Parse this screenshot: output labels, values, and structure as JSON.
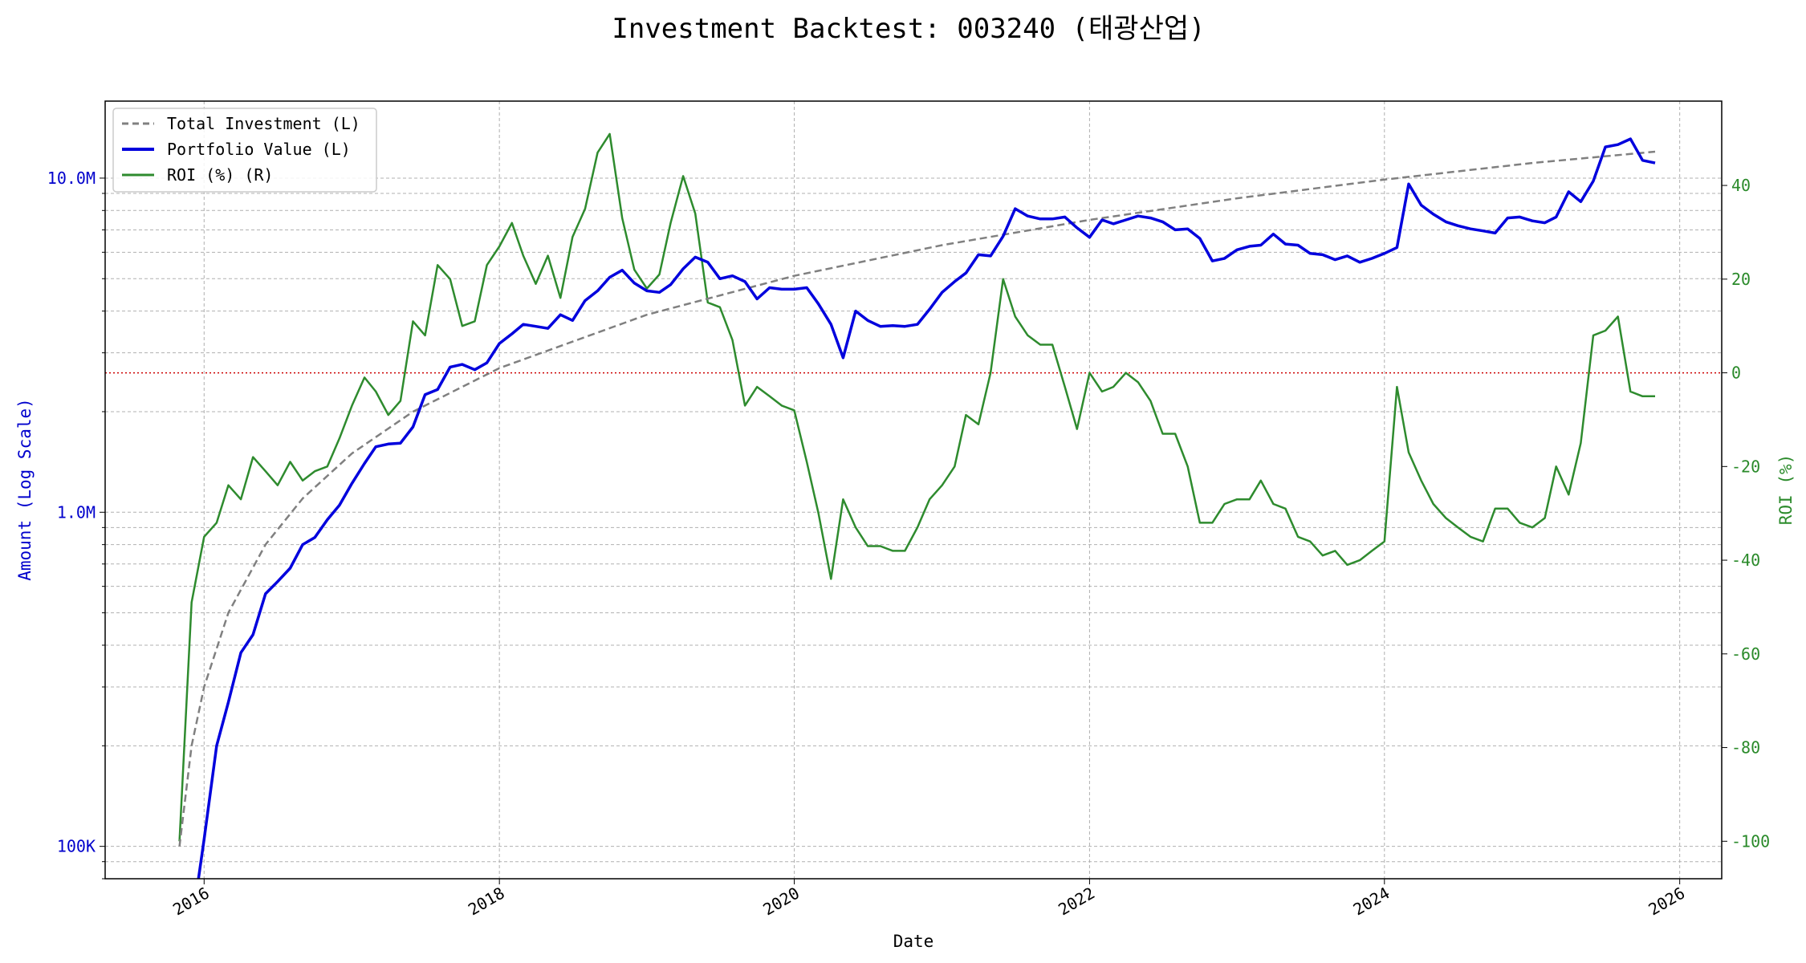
{
  "chart_data": {
    "type": "line",
    "title": "Investment Backtest: 003240 (태광산업)",
    "xlabel": "Date",
    "ylabel_left": "Amount (Log Scale)",
    "ylabel_right": "ROI (%)",
    "y_left_scale": "log",
    "y_left_ticks": [
      {
        "value": 100000,
        "label": "100K"
      },
      {
        "value": 1000000,
        "label": "1.0M"
      },
      {
        "value": 10000000,
        "label": "10.0M"
      }
    ],
    "y_right_ticks": [
      -100,
      -80,
      -60,
      -40,
      -20,
      0,
      20,
      40
    ],
    "x_ticks": [
      "2016",
      "2018",
      "2020",
      "2022",
      "2024",
      "2026"
    ],
    "x_range": [
      "2015-05-01",
      "2026-04-15"
    ],
    "y_left_range": [
      80000,
      17000000
    ],
    "y_right_range": [
      -108,
      58
    ],
    "grid": true,
    "legend_position": "top-left",
    "legend": [
      "Total Investment (L)",
      "Portfolio Value (L)",
      "ROI (%) (R)"
    ],
    "reference_line": {
      "axis": "right",
      "value": 0,
      "color": "#cc0000",
      "style": "dotted"
    },
    "colors": {
      "total_investment": "#808080",
      "portfolio_value": "#0000dd",
      "roi": "#2e8b2e",
      "left_axis": "#0000cc",
      "right_axis": "#2a8a2a"
    },
    "series": [
      {
        "name": "Total Investment (L)",
        "axis": "left",
        "style": "dashed",
        "x": [
          "2015-11-01",
          "2015-12-01",
          "2016-01-01",
          "2016-03-01",
          "2016-06-01",
          "2016-09-01",
          "2017-01-01",
          "2017-06-01",
          "2018-01-01",
          "2019-01-01",
          "2020-01-01",
          "2021-01-01",
          "2022-01-01",
          "2023-01-01",
          "2024-01-01",
          "2025-01-01",
          "2025-11-01"
        ],
        "values": [
          100000,
          200000,
          300000,
          500000,
          800000,
          1100000,
          1500000,
          2000000,
          2700000,
          3900000,
          5100000,
          6300000,
          7500000,
          8700000,
          9900000,
          11100000,
          12000000
        ]
      },
      {
        "name": "Portfolio Value (L)",
        "axis": "left",
        "style": "solid",
        "x": [
          "2015-12-01",
          "2016-01-01",
          "2016-02-01",
          "2016-03-01",
          "2016-04-01",
          "2016-05-01",
          "2016-06-01",
          "2016-07-01",
          "2016-08-01",
          "2016-09-01",
          "2016-10-01",
          "2016-11-01",
          "2016-12-01",
          "2017-01-01",
          "2017-02-01",
          "2017-03-01",
          "2017-04-01",
          "2017-05-01",
          "2017-06-01",
          "2017-07-01",
          "2017-08-01",
          "2017-09-01",
          "2017-10-01",
          "2017-11-01",
          "2017-12-01",
          "2018-01-01",
          "2018-02-01",
          "2018-03-01",
          "2018-04-01",
          "2018-05-01",
          "2018-06-01",
          "2018-07-01",
          "2018-08-01",
          "2018-09-01",
          "2018-10-01",
          "2018-11-01",
          "2018-12-01",
          "2019-01-01",
          "2019-02-01",
          "2019-03-01",
          "2019-04-01",
          "2019-05-01",
          "2019-06-01",
          "2019-07-01",
          "2019-08-01",
          "2019-09-01",
          "2019-10-01",
          "2019-11-01",
          "2019-12-01",
          "2020-01-01",
          "2020-02-01",
          "2020-03-01",
          "2020-04-01",
          "2020-05-01",
          "2020-06-01",
          "2020-07-01",
          "2020-08-01",
          "2020-09-01",
          "2020-10-01",
          "2020-11-01",
          "2020-12-01",
          "2021-01-01",
          "2021-02-01",
          "2021-03-01",
          "2021-04-01",
          "2021-05-01",
          "2021-06-01",
          "2021-07-01",
          "2021-08-01",
          "2021-09-01",
          "2021-10-01",
          "2021-11-01",
          "2021-12-01",
          "2022-01-01",
          "2022-02-01",
          "2022-03-01",
          "2022-04-01",
          "2022-05-01",
          "2022-06-01",
          "2022-07-01",
          "2022-08-01",
          "2022-09-01",
          "2022-10-01",
          "2022-11-01",
          "2022-12-01",
          "2023-01-01",
          "2023-02-01",
          "2023-03-01",
          "2023-04-01",
          "2023-05-01",
          "2023-06-01",
          "2023-07-01",
          "2023-08-01",
          "2023-09-01",
          "2023-10-01",
          "2023-11-01",
          "2023-12-01",
          "2024-01-01",
          "2024-02-01",
          "2024-03-01",
          "2024-04-01",
          "2024-05-01",
          "2024-06-01",
          "2024-07-01",
          "2024-08-01",
          "2024-09-01",
          "2024-10-01",
          "2024-11-01",
          "2024-12-01",
          "2025-01-01",
          "2025-02-01",
          "2025-03-01",
          "2025-04-01",
          "2025-05-01",
          "2025-06-01",
          "2025-07-01",
          "2025-08-01",
          "2025-09-01",
          "2025-10-01",
          "2025-11-01"
        ],
        "values": [
          70000,
          105000,
          200000,
          270000,
          380000,
          430000,
          570000,
          620000,
          680000,
          800000,
          840000,
          950000,
          1050000,
          1220000,
          1400000,
          1570000,
          1600000,
          1610000,
          1800000,
          2250000,
          2330000,
          2720000,
          2770000,
          2670000,
          2800000,
          3200000,
          3420000,
          3650000,
          3600000,
          3550000,
          3900000,
          3750000,
          4300000,
          4600000,
          5050000,
          5300000,
          4850000,
          4600000,
          4550000,
          4800000,
          5350000,
          5800000,
          5600000,
          5000000,
          5100000,
          4900000,
          4350000,
          4700000,
          4650000,
          4650000,
          4700000,
          4200000,
          3650000,
          2900000,
          4000000,
          3750000,
          3600000,
          3620000,
          3600000,
          3650000,
          4050000,
          4550000,
          4900000,
          5200000,
          5900000,
          5850000,
          6700000,
          8100000,
          7700000,
          7550000,
          7550000,
          7650000,
          7100000,
          6650000,
          7500000,
          7300000,
          7500000,
          7700000,
          7600000,
          7400000,
          7000000,
          7050000,
          6600000,
          5650000,
          5750000,
          6100000,
          6250000,
          6300000,
          6800000,
          6350000,
          6300000,
          5950000,
          5900000,
          5700000,
          5850000,
          5600000,
          5750000,
          5950000,
          6200000,
          9600000,
          8300000,
          7800000,
          7400000,
          7200000,
          7050000,
          6950000,
          6850000,
          7600000,
          7650000,
          7450000,
          7350000,
          7650000,
          9100000,
          8500000,
          9800000,
          12400000,
          12600000,
          13100000,
          11300000,
          11100000
        ],
        "markers": false
      },
      {
        "name": "ROI (%) (R)",
        "axis": "right",
        "style": "solid",
        "x": [
          "2015-11-01",
          "2015-12-01",
          "2016-01-01",
          "2016-02-01",
          "2016-03-01",
          "2016-04-01",
          "2016-05-01",
          "2016-06-01",
          "2016-07-01",
          "2016-08-01",
          "2016-09-01",
          "2016-10-01",
          "2016-11-01",
          "2016-12-01",
          "2017-01-01",
          "2017-02-01",
          "2017-03-01",
          "2017-04-01",
          "2017-05-01",
          "2017-06-01",
          "2017-07-01",
          "2017-08-01",
          "2017-09-01",
          "2017-10-01",
          "2017-11-01",
          "2017-12-01",
          "2018-01-01",
          "2018-02-01",
          "2018-03-01",
          "2018-04-01",
          "2018-05-01",
          "2018-06-01",
          "2018-07-01",
          "2018-08-01",
          "2018-09-01",
          "2018-10-01",
          "2018-11-01",
          "2018-12-01",
          "2019-01-01",
          "2019-02-01",
          "2019-03-01",
          "2019-04-01",
          "2019-05-01",
          "2019-06-01",
          "2019-07-01",
          "2019-08-01",
          "2019-09-01",
          "2019-10-01",
          "2019-11-01",
          "2019-12-01",
          "2020-01-01",
          "2020-02-01",
          "2020-03-01",
          "2020-04-01",
          "2020-05-01",
          "2020-06-01",
          "2020-07-01",
          "2020-08-01",
          "2020-09-01",
          "2020-10-01",
          "2020-11-01",
          "2020-12-01",
          "2021-01-01",
          "2021-02-01",
          "2021-03-01",
          "2021-04-01",
          "2021-05-01",
          "2021-06-01",
          "2021-07-01",
          "2021-08-01",
          "2021-09-01",
          "2021-10-01",
          "2021-11-01",
          "2021-12-01",
          "2022-01-01",
          "2022-02-01",
          "2022-03-01",
          "2022-04-01",
          "2022-05-01",
          "2022-06-01",
          "2022-07-01",
          "2022-08-01",
          "2022-09-01",
          "2022-10-01",
          "2022-11-01",
          "2022-12-01",
          "2023-01-01",
          "2023-02-01",
          "2023-03-01",
          "2023-04-01",
          "2023-05-01",
          "2023-06-01",
          "2023-07-01",
          "2023-08-01",
          "2023-09-01",
          "2023-10-01",
          "2023-11-01",
          "2023-12-01",
          "2024-01-01",
          "2024-02-01",
          "2024-03-01",
          "2024-04-01",
          "2024-05-01",
          "2024-06-01",
          "2024-07-01",
          "2024-08-01",
          "2024-09-01",
          "2024-10-01",
          "2024-11-01",
          "2024-12-01",
          "2025-01-01",
          "2025-02-01",
          "2025-03-01",
          "2025-04-01",
          "2025-05-01",
          "2025-06-01",
          "2025-07-01",
          "2025-08-01",
          "2025-09-01",
          "2025-10-01",
          "2025-11-01"
        ],
        "values": [
          -100,
          -49,
          -35,
          -32,
          -24,
          -27,
          -18,
          -21,
          -24,
          -19,
          -23,
          -21,
          -20,
          -14,
          -7,
          -1,
          -4,
          -9,
          -6,
          11,
          8,
          23,
          20,
          10,
          11,
          23,
          27,
          32,
          25,
          19,
          25,
          16,
          29,
          35,
          47,
          51,
          33,
          22,
          18,
          21,
          32,
          42,
          34,
          15,
          14,
          7,
          -7,
          -3,
          -5,
          -7,
          -8,
          -19,
          -30,
          -44,
          -27,
          -33,
          -37,
          -37,
          -38,
          -38,
          -33,
          -27,
          -24,
          -20,
          -9,
          -11,
          0,
          20,
          12,
          8,
          6,
          6,
          -3,
          -12,
          0,
          -4,
          -3,
          0,
          -2,
          -6,
          -13,
          -13,
          -20,
          -32,
          -32,
          -28,
          -27,
          -27,
          -23,
          -28,
          -29,
          -35,
          -36,
          -39,
          -38,
          -41,
          -40,
          -38,
          -36,
          -3,
          -17,
          -23,
          -28,
          -31,
          -33,
          -35,
          -36,
          -29,
          -29,
          -32,
          -33,
          -31,
          -20,
          -26,
          -15,
          8,
          9,
          12,
          -4,
          -5,
          -5
        ]
      }
    ]
  }
}
